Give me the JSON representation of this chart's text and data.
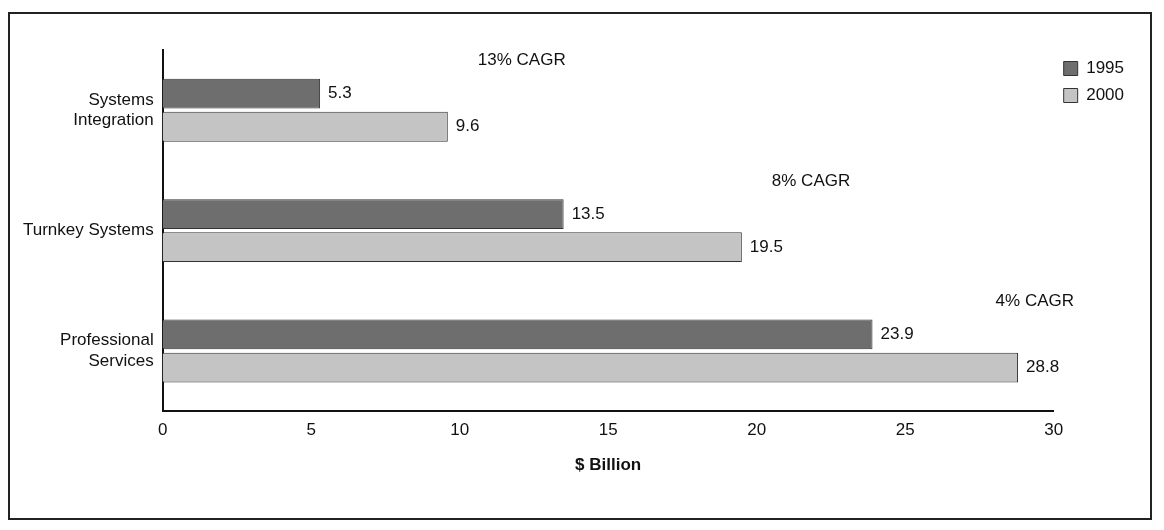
{
  "chart_data": {
    "type": "bar",
    "orientation": "horizontal",
    "xlabel": "$ Billion",
    "categories": [
      "Systems Integration",
      "Turnkey Systems",
      "Professional Services"
    ],
    "series": [
      {
        "name": "1995",
        "color": "#6e6e6e",
        "values": [
          5.3,
          13.5,
          23.9
        ]
      },
      {
        "name": "2000",
        "color": "#c4c4c4",
        "values": [
          9.6,
          19.5,
          28.8
        ]
      }
    ],
    "xlim": [
      0,
      30
    ],
    "xticks": [
      0,
      5,
      10,
      15,
      20,
      25,
      30
    ],
    "grid": false,
    "legend": "top right",
    "data_labels": true,
    "annotations": [
      "13% CAGR",
      "8% CAGR",
      "4% CAGR"
    ]
  }
}
